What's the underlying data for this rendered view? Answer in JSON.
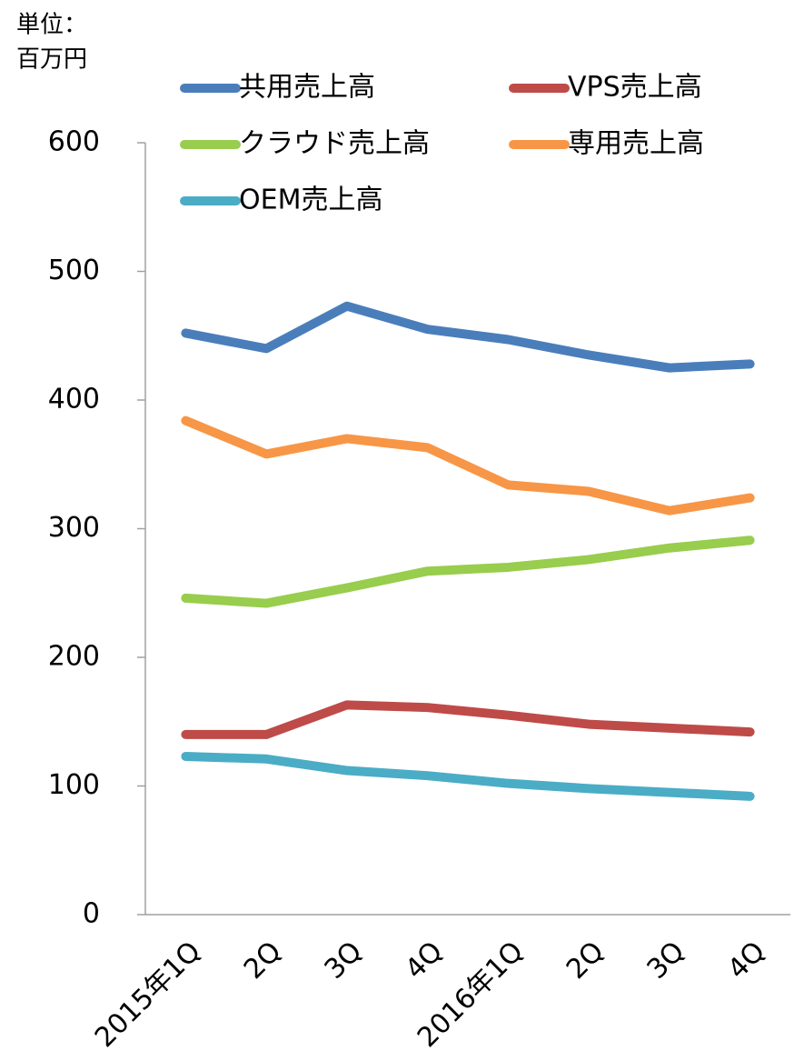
{
  "chart_data": {
    "type": "line",
    "unit_label": [
      "単位：",
      "百万円"
    ],
    "categories": [
      "2015年1Q",
      "2Q",
      "3Q",
      "4Q",
      "2016年1Q",
      "2Q",
      "3Q",
      "4Q"
    ],
    "series": [
      {
        "name": "共用売上高",
        "color": "#4a7ebb",
        "values": [
          452,
          440,
          473,
          455,
          447,
          435,
          425,
          428
        ]
      },
      {
        "name": "VPS売上高",
        "color": "#be4b48",
        "values": [
          140,
          140,
          163,
          161,
          155,
          148,
          145,
          142
        ]
      },
      {
        "name": "クラウド売上高",
        "color": "#98cd4d",
        "values": [
          246,
          242,
          254,
          267,
          270,
          276,
          285,
          291
        ]
      },
      {
        "name": "専用売上高",
        "color": "#f79646",
        "values": [
          384,
          358,
          370,
          363,
          334,
          329,
          314,
          324
        ]
      },
      {
        "name": "OEM売上高",
        "color": "#4bacc6",
        "values": [
          123,
          121,
          112,
          108,
          102,
          98,
          95,
          92
        ]
      }
    ],
    "ylim": [
      0,
      600
    ],
    "yticks": [
      0,
      100,
      200,
      300,
      400,
      500,
      600
    ],
    "grid": false
  }
}
